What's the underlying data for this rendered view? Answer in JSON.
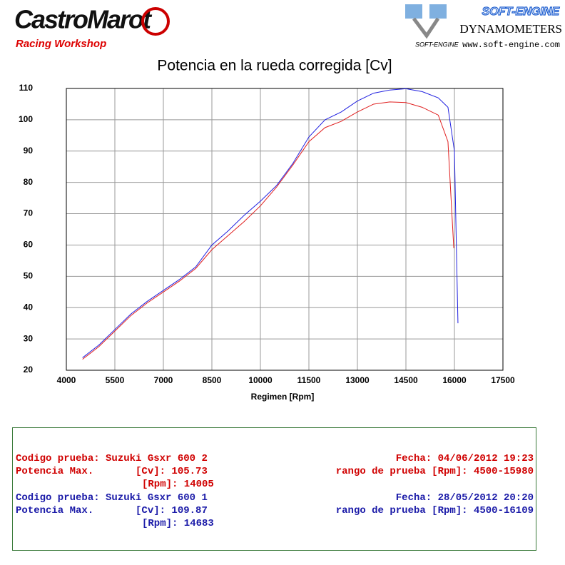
{
  "header": {
    "brand": "CastroMarot",
    "brand_sub": "Racing Workshop",
    "logo_small": "SOFT-ENGINE",
    "maker": "SOFT-ENGINE",
    "maker_sub": "DYNAMOMETERS",
    "url": "www.soft-engine.com"
  },
  "chart_data": {
    "type": "line",
    "title": "Potencia en la rueda corregida [Cv]",
    "x_label": "Regimen [Rpm]",
    "xlim": [
      4000,
      17500
    ],
    "xticks": [
      4000,
      5500,
      7000,
      8500,
      10000,
      11500,
      13000,
      14500,
      16000,
      17500
    ],
    "ylim": [
      20,
      110
    ],
    "yticks": [
      20,
      30,
      40,
      50,
      60,
      70,
      80,
      90,
      100,
      110
    ],
    "grid": true,
    "series": [
      {
        "name": "Suzuki Gsxr 600 1",
        "color": "#2020e0",
        "x": [
          4500,
          5000,
          5500,
          6000,
          6500,
          7000,
          7500,
          8000,
          8500,
          9000,
          9500,
          10000,
          10500,
          11000,
          11500,
          12000,
          12500,
          13000,
          13500,
          14000,
          14500,
          15000,
          15500,
          15800,
          16000,
          16109
        ],
        "values": [
          24,
          28,
          33,
          38,
          42,
          45.5,
          49,
          53,
          60,
          64.5,
          69.5,
          74,
          79,
          86,
          94.5,
          100,
          102.5,
          106,
          108.5,
          109.5,
          109.9,
          109,
          107,
          104,
          90,
          35
        ]
      },
      {
        "name": "Suzuki Gsxr 600 2",
        "color": "#e02020",
        "x": [
          4500,
          5000,
          5500,
          6000,
          6500,
          7000,
          7500,
          8000,
          8500,
          9000,
          9500,
          10000,
          10500,
          11000,
          11500,
          12000,
          12500,
          13000,
          13500,
          14000,
          14500,
          15000,
          15500,
          15800,
          15980
        ],
        "values": [
          23.5,
          27.5,
          32.5,
          37.5,
          41.5,
          45,
          48.5,
          52.5,
          58.5,
          63,
          67.5,
          72.5,
          78.5,
          85.5,
          93,
          97.5,
          99.5,
          102.5,
          105,
          105.7,
          105.5,
          104,
          101.5,
          93,
          59
        ]
      }
    ]
  },
  "summary": {
    "red": {
      "code": "Codigo prueba: Suzuki Gsxr 600 2",
      "date": "Fecha: 04/06/2012 19:23",
      "power": "Potencia Max.       [Cv]: 105.73",
      "range": "rango de prueba [Rpm]: 4500-15980",
      "rpm": "[Rpm]: 14005"
    },
    "blue": {
      "code": "Codigo prueba: Suzuki Gsxr 600 1",
      "date": "Fecha: 28/05/2012 20:20",
      "power": "Potencia Max.       [Cv]: 109.87",
      "range": "rango de prueba [Rpm]: 4500-16109",
      "rpm": "[Rpm]: 14683"
    }
  }
}
